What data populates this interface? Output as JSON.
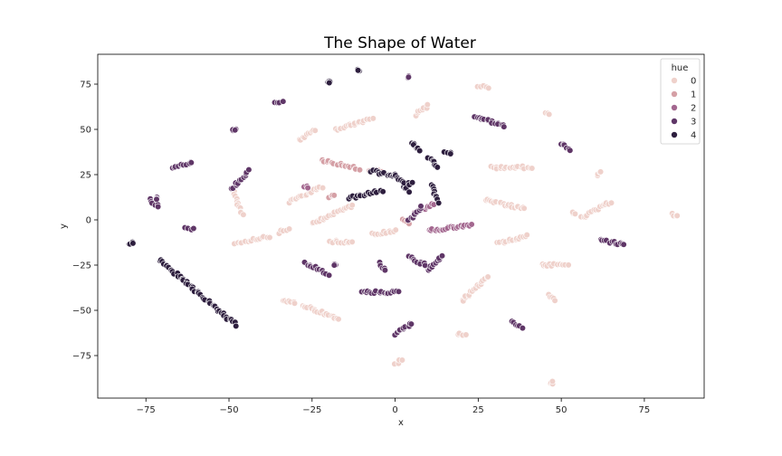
{
  "chart_data": {
    "type": "scatter",
    "title": "The Shape of Water",
    "xlabel": "x",
    "ylabel": "y",
    "xlim": [
      -89.5,
      93
    ],
    "ylim": [
      -98.5,
      91.5
    ],
    "x_ticks": [
      -75,
      -50,
      -25,
      0,
      25,
      50,
      75
    ],
    "y_ticks": [
      75,
      50,
      25,
      0,
      -25,
      -50,
      -75
    ],
    "grid": false,
    "legend": {
      "title": "hue",
      "placement": "top-right",
      "entries": [
        "0",
        "1",
        "2",
        "3",
        "4"
      ]
    },
    "hue_colors": {
      "0": "#efd1cb",
      "1": "#d5a0a6",
      "2": "#a3678f",
      "3": "#5f3667",
      "4": "#2d1e3e"
    },
    "series": [
      {
        "name": "0",
        "clusters": [
          {
            "x1": -18,
            "y1": 50,
            "x2": -7,
            "y2": 56
          },
          {
            "x1": -29,
            "y1": 44,
            "x2": -24,
            "y2": 50
          },
          {
            "x1": -49,
            "y1": 17,
            "x2": -46,
            "y2": 3
          },
          {
            "x1": -48,
            "y1": -13,
            "x2": -38,
            "y2": -9
          },
          {
            "x1": -35,
            "y1": -7,
            "x2": -32,
            "y2": -5
          },
          {
            "x1": -32,
            "y1": 10,
            "x2": -22,
            "y2": 18
          },
          {
            "x1": -25,
            "y1": -2,
            "x2": -13,
            "y2": 8
          },
          {
            "x1": -20,
            "y1": -12,
            "x2": -13,
            "y2": -12
          },
          {
            "x1": -7,
            "y1": -8,
            "x2": 0,
            "y2": -6
          },
          {
            "x1": 6,
            "y1": 58,
            "x2": 10,
            "y2": 63
          },
          {
            "x1": 25,
            "y1": 74,
            "x2": 28,
            "y2": 73
          },
          {
            "x1": 29,
            "y1": 29,
            "x2": 41,
            "y2": 29
          },
          {
            "x1": 27,
            "y1": 11,
            "x2": 39,
            "y2": 6
          },
          {
            "x1": 31,
            "y1": -13,
            "x2": 40,
            "y2": -9
          },
          {
            "x1": 20,
            "y1": -45,
            "x2": 28,
            "y2": -31
          },
          {
            "x1": 45,
            "y1": 59,
            "x2": 46,
            "y2": 59
          },
          {
            "x1": 44,
            "y1": -25,
            "x2": 52,
            "y2": -25
          },
          {
            "x1": 46,
            "y1": -41,
            "x2": 48,
            "y2": -45
          },
          {
            "x1": 56,
            "y1": 1,
            "x2": 65,
            "y2": 10
          },
          {
            "x1": 61,
            "y1": 25,
            "x2": 62,
            "y2": 27
          },
          {
            "x1": -34,
            "y1": -45,
            "x2": -30,
            "y2": -46
          },
          {
            "x1": -28,
            "y1": -47,
            "x2": -17,
            "y2": -55
          },
          {
            "x1": 0,
            "y1": -80,
            "x2": 2,
            "y2": -77
          },
          {
            "x1": 19,
            "y1": -63,
            "x2": 21,
            "y2": -63
          },
          {
            "x1": 47,
            "y1": -90,
            "x2": 47,
            "y2": -90
          },
          {
            "x1": 83,
            "y1": 3,
            "x2": 85,
            "y2": 2
          },
          {
            "x1": 53,
            "y1": 4,
            "x2": 54,
            "y2": 4
          }
        ]
      },
      {
        "name": "1",
        "clusters": [
          {
            "x1": -22,
            "y1": 33,
            "x2": -11,
            "y2": 28
          },
          {
            "x1": -8,
            "y1": 27,
            "x2": -4,
            "y2": 27
          },
          {
            "x1": -20,
            "y1": 13,
            "x2": -18,
            "y2": 13
          },
          {
            "x1": 2,
            "y1": 0,
            "x2": 4,
            "y2": -2
          }
        ]
      },
      {
        "name": "2",
        "clusters": [
          {
            "x1": 10,
            "y1": -6,
            "x2": 23,
            "y2": -3
          },
          {
            "x1": 6,
            "y1": 4,
            "x2": 12,
            "y2": 9
          },
          {
            "x1": -27,
            "y1": 18,
            "x2": -26,
            "y2": 18
          }
        ]
      },
      {
        "name": "3",
        "clusters": [
          {
            "x1": -74,
            "y1": 11,
            "x2": -71,
            "y2": 7
          },
          {
            "x1": -72,
            "y1": 12,
            "x2": -72,
            "y2": 12
          },
          {
            "x1": -67,
            "y1": 28,
            "x2": -61,
            "y2": 32
          },
          {
            "x1": -49,
            "y1": 17,
            "x2": -44,
            "y2": 27
          },
          {
            "x1": -49,
            "y1": 50,
            "x2": -48,
            "y2": 50
          },
          {
            "x1": -36,
            "y1": 65,
            "x2": -34,
            "y2": 65
          },
          {
            "x1": -63,
            "y1": -5,
            "x2": -61,
            "y2": -5
          },
          {
            "x1": -27,
            "y1": -24,
            "x2": -20,
            "y2": -30
          },
          {
            "x1": -18,
            "y1": -25,
            "x2": -18,
            "y2": -25
          },
          {
            "x1": -10,
            "y1": -40,
            "x2": 1,
            "y2": -40
          },
          {
            "x1": -5,
            "y1": -24,
            "x2": -3,
            "y2": -28
          },
          {
            "x1": 4,
            "y1": -20,
            "x2": 9,
            "y2": -25
          },
          {
            "x1": 10,
            "y1": -28,
            "x2": 14,
            "y2": -20
          },
          {
            "x1": 0,
            "y1": -63,
            "x2": 5,
            "y2": -57
          },
          {
            "x1": 35,
            "y1": -56,
            "x2": 38,
            "y2": -60
          },
          {
            "x1": 4,
            "y1": 79,
            "x2": 4,
            "y2": 79
          },
          {
            "x1": 24,
            "y1": 57,
            "x2": 33,
            "y2": 52
          },
          {
            "x1": 50,
            "y1": 42,
            "x2": 53,
            "y2": 39
          },
          {
            "x1": 62,
            "y1": -11,
            "x2": 69,
            "y2": -14
          },
          {
            "x1": 4,
            "y1": 0,
            "x2": 8,
            "y2": 7
          }
        ]
      },
      {
        "name": "4",
        "clusters": [
          {
            "x1": -80,
            "y1": -13,
            "x2": -79,
            "y2": -13
          },
          {
            "x1": -71,
            "y1": -22,
            "x2": -48,
            "y2": -58
          },
          {
            "x1": -20,
            "y1": 76,
            "x2": -20,
            "y2": 76
          },
          {
            "x1": -11,
            "y1": 83,
            "x2": -11,
            "y2": 83
          },
          {
            "x1": -14,
            "y1": 12,
            "x2": -4,
            "y2": 16
          },
          {
            "x1": -7,
            "y1": 27,
            "x2": 0,
            "y2": 24
          },
          {
            "x1": 0,
            "y1": 25,
            "x2": 4,
            "y2": 16
          },
          {
            "x1": 5,
            "y1": 43,
            "x2": 7,
            "y2": 38
          },
          {
            "x1": 10,
            "y1": 35,
            "x2": 13,
            "y2": 29
          },
          {
            "x1": 11,
            "y1": 19,
            "x2": 13,
            "y2": 10
          },
          {
            "x1": 15,
            "y1": 37,
            "x2": 17,
            "y2": 37
          },
          {
            "x1": 3,
            "y1": 20,
            "x2": 5,
            "y2": 20
          }
        ]
      }
    ]
  }
}
